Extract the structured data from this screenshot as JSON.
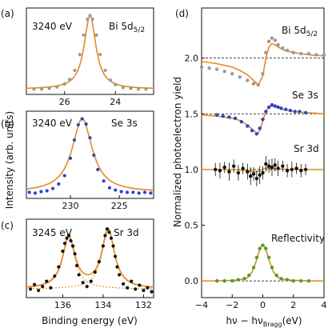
{
  "colors": {
    "fit": "#e58a1f",
    "axis": "#111111",
    "gray_points": "#9a9a9a",
    "blue_points": "#2b46c7",
    "black_points": "#111111",
    "green_points": "#4aa02c",
    "baseline": "#111111"
  },
  "labels": {
    "a": "(a)",
    "b": "(b)",
    "c": "(c)",
    "d": "(d)",
    "left_ylabel": "Intensity (arb. units)",
    "left_xlabel": "Binding energy (eV)",
    "right_ylabel": "Normalized photoelectron yield",
    "right_xlabel": "hν − hν",
    "right_xlabel_sub": "Bragg",
    "right_xlabel_unit": "(eV)"
  },
  "chart_data": [
    {
      "panel": "a",
      "type": "scatter",
      "energy_label": "3240 eV",
      "core_label": "Bi 5d",
      "core_sub": "5/2",
      "xlim": [
        27.5,
        22.5
      ],
      "xticks": [
        "26",
        "24"
      ],
      "xtick_values": [
        26,
        24
      ],
      "x": [
        27.2,
        26.9,
        26.6,
        26.3,
        26.0,
        25.8,
        25.6,
        25.4,
        25.25,
        25.1,
        25.0,
        24.9,
        24.75,
        24.6,
        24.4,
        24.2,
        24.0,
        23.7,
        23.4,
        23.1,
        22.8
      ],
      "y": [
        0.02,
        0.02,
        0.03,
        0.05,
        0.09,
        0.15,
        0.27,
        0.48,
        0.74,
        0.95,
        1.0,
        0.95,
        0.74,
        0.48,
        0.27,
        0.14,
        0.08,
        0.04,
        0.03,
        0.02,
        0.02
      ],
      "fit": {
        "center": 25.0,
        "width": 0.28,
        "baseline": 0.02,
        "amplitude": 0.98
      },
      "ylim": [
        -0.05,
        1.1
      ]
    },
    {
      "panel": "b",
      "type": "scatter",
      "energy_label": "3240 eV",
      "core_label": "Se 3s",
      "core_sub": "",
      "xlim": [
        234.5,
        221.5
      ],
      "xticks": [
        "230",
        "225"
      ],
      "xtick_values": [
        230,
        225
      ],
      "x": [
        234.2,
        233.6,
        233.0,
        232.4,
        231.8,
        231.2,
        230.6,
        230.0,
        229.6,
        229.2,
        228.8,
        228.4,
        228.0,
        227.6,
        227.2,
        226.6,
        226.0,
        225.4,
        224.8,
        224.2,
        223.6,
        223.0,
        222.4,
        221.8
      ],
      "y": [
        0.03,
        0.02,
        0.04,
        0.05,
        0.08,
        0.14,
        0.25,
        0.48,
        0.72,
        0.92,
        1.0,
        0.93,
        0.75,
        0.52,
        0.33,
        0.18,
        0.09,
        0.06,
        0.04,
        0.03,
        0.03,
        0.02,
        0.03,
        0.02
      ],
      "fit": {
        "center": 228.8,
        "width": 1.25,
        "baseline": 0.03,
        "amplitude": 0.97
      },
      "ylim": [
        -0.05,
        1.1
      ]
    },
    {
      "panel": "c",
      "type": "scatter",
      "energy_label": "3245 eV",
      "core_label": "Sr 3d",
      "core_sub": "",
      "xlim": [
        137.8,
        131.5
      ],
      "xticks": [
        "136",
        "134",
        "132"
      ],
      "xtick_values": [
        136,
        134,
        132
      ],
      "x": [
        137.6,
        137.4,
        137.2,
        137.0,
        136.8,
        136.6,
        136.4,
        136.2,
        136.0,
        135.9,
        135.8,
        135.7,
        135.6,
        135.5,
        135.4,
        135.3,
        135.2,
        135.0,
        134.8,
        134.6,
        134.4,
        134.2,
        134.0,
        133.9,
        133.8,
        133.7,
        133.6,
        133.5,
        133.4,
        133.3,
        133.2,
        133.0,
        132.8,
        132.6,
        132.4,
        132.2,
        132.0,
        131.8,
        131.6
      ],
      "y": [
        0.08,
        0.15,
        0.06,
        0.12,
        0.2,
        0.1,
        0.28,
        0.42,
        0.66,
        0.78,
        0.86,
        0.9,
        0.82,
        0.74,
        0.62,
        0.44,
        0.3,
        0.18,
        0.12,
        0.2,
        0.34,
        0.5,
        0.74,
        0.9,
        1.0,
        0.95,
        0.86,
        0.74,
        0.58,
        0.42,
        0.3,
        0.16,
        0.1,
        0.2,
        0.08,
        0.14,
        0.06,
        0.1,
        0.04
      ],
      "fit": {
        "peaks": [
          {
            "center": 135.7,
            "width": 0.38,
            "amplitude": 0.78
          },
          {
            "center": 133.75,
            "width": 0.38,
            "amplitude": 0.9
          }
        ],
        "baseline": 0.08
      },
      "ylim": [
        -0.05,
        1.15
      ]
    },
    {
      "panel": "d",
      "type": "line",
      "xlim": [
        -4,
        4
      ],
      "xticks": [
        "−4",
        "−2",
        "0",
        "2",
        "4"
      ],
      "xtick_values": [
        -4,
        -2,
        0,
        2,
        4
      ],
      "ylim": [
        -0.15,
        2.45
      ],
      "yticks": [
        "0.0",
        "0.5",
        "1.0",
        "1.5",
        "2.0"
      ],
      "ytick_values": [
        0,
        0.5,
        1.0,
        1.5,
        2.0
      ],
      "baselines": [
        0,
        1.0,
        1.5,
        2.0
      ],
      "series": [
        {
          "name": "Bi 5d",
          "name_sub": "5/2",
          "color_key": "gray_points",
          "x": [
            -4.0,
            -3.5,
            -3.0,
            -2.5,
            -2.0,
            -1.5,
            -1.0,
            -0.6,
            -0.3,
            0.0,
            0.2,
            0.4,
            0.6,
            0.8,
            1.0,
            1.3,
            1.6,
            2.0,
            2.5,
            3.0,
            3.5,
            4.0
          ],
          "y": [
            1.92,
            1.91,
            1.9,
            1.88,
            1.86,
            1.83,
            1.8,
            1.77,
            1.76,
            1.86,
            2.05,
            2.15,
            2.18,
            2.16,
            2.12,
            2.09,
            2.07,
            2.05,
            2.04,
            2.04,
            2.03,
            2.03
          ],
          "fit_x": [
            -4.0,
            -3.0,
            -2.0,
            -1.5,
            -1.0,
            -0.6,
            -0.3,
            0.0,
            0.2,
            0.4,
            0.6,
            0.8,
            1.0,
            1.4,
            2.0,
            3.0,
            4.0
          ],
          "fit_y": [
            1.97,
            1.95,
            1.92,
            1.89,
            1.85,
            1.8,
            1.76,
            1.84,
            2.0,
            2.1,
            2.13,
            2.12,
            2.1,
            2.07,
            2.05,
            2.03,
            2.02
          ]
        },
        {
          "name": "Se 3s",
          "name_sub": "",
          "color_key": "blue_points",
          "x": [
            -3.0,
            -2.6,
            -2.2,
            -1.8,
            -1.4,
            -1.0,
            -0.7,
            -0.4,
            -0.2,
            0.0,
            0.2,
            0.4,
            0.6,
            0.8,
            1.0,
            1.2,
            1.5,
            1.8,
            2.1,
            2.4,
            2.8
          ],
          "y": [
            1.49,
            1.48,
            1.47,
            1.46,
            1.43,
            1.39,
            1.35,
            1.32,
            1.37,
            1.45,
            1.52,
            1.56,
            1.58,
            1.57,
            1.56,
            1.55,
            1.54,
            1.53,
            1.52,
            1.52,
            1.51
          ],
          "fit_x": [
            -4.0,
            -3.0,
            -2.0,
            -1.5,
            -1.0,
            -0.6,
            -0.35,
            -0.15,
            0.0,
            0.2,
            0.4,
            0.6,
            0.9,
            1.3,
            2.0,
            3.0,
            4.0
          ],
          "fit_y": [
            1.49,
            1.48,
            1.46,
            1.44,
            1.4,
            1.35,
            1.32,
            1.36,
            1.44,
            1.52,
            1.56,
            1.57,
            1.56,
            1.54,
            1.52,
            1.51,
            1.5
          ]
        },
        {
          "name": "Sr 3d",
          "name_sub": "",
          "color_key": "black_points",
          "x": [
            -3.1,
            -2.8,
            -2.5,
            -2.2,
            -1.9,
            -1.6,
            -1.3,
            -1.0,
            -0.8,
            -0.6,
            -0.4,
            -0.2,
            0.0,
            0.2,
            0.4,
            0.6,
            0.8,
            1.0,
            1.3,
            1.6,
            1.9,
            2.2,
            2.5,
            2.8
          ],
          "y": [
            1.0,
            0.99,
            1.02,
            0.98,
            1.03,
            0.97,
            1.01,
            0.98,
            0.94,
            0.96,
            0.92,
            0.95,
            0.97,
            1.05,
            1.03,
            1.02,
            1.04,
            1.01,
            1.03,
            0.99,
            1.0,
            1.01,
            0.99,
            1.0
          ],
          "err": [
            0.06,
            0.07,
            0.05,
            0.08,
            0.06,
            0.07,
            0.05,
            0.07,
            0.08,
            0.06,
            0.07,
            0.08,
            0.06,
            0.07,
            0.06,
            0.08,
            0.06,
            0.07,
            0.05,
            0.06,
            0.07,
            0.05,
            0.06,
            0.05
          ],
          "fit_x": [
            -4.0,
            -2.0,
            -1.0,
            -0.5,
            -0.2,
            0.0,
            0.2,
            0.5,
            1.0,
            2.0,
            4.0
          ],
          "fit_y": [
            1.0,
            1.0,
            0.99,
            0.98,
            0.985,
            1.0,
            1.015,
            1.01,
            1.005,
            1.0,
            1.0
          ]
        },
        {
          "name": "Reflectivity",
          "name_sub": "",
          "color_key": "green_points",
          "x": [
            -3.0,
            -2.5,
            -2.0,
            -1.6,
            -1.2,
            -0.9,
            -0.6,
            -0.4,
            -0.2,
            0.0,
            0.2,
            0.4,
            0.6,
            0.9,
            1.2,
            1.6,
            2.0,
            2.5,
            3.0
          ],
          "y": [
            0.0,
            0.0,
            0.0,
            0.01,
            0.02,
            0.05,
            0.12,
            0.21,
            0.29,
            0.32,
            0.29,
            0.21,
            0.12,
            0.05,
            0.02,
            0.01,
            0.0,
            0.0,
            0.0
          ],
          "fit_x": [
            -4.0,
            -3.0,
            -2.0,
            -1.5,
            -1.0,
            -0.7,
            -0.45,
            -0.25,
            -0.1,
            0.0,
            0.1,
            0.25,
            0.45,
            0.7,
            1.0,
            1.5,
            2.0,
            3.0,
            4.0
          ],
          "fit_y": [
            0.0,
            0.0,
            0.005,
            0.01,
            0.03,
            0.08,
            0.17,
            0.26,
            0.31,
            0.32,
            0.31,
            0.26,
            0.17,
            0.08,
            0.03,
            0.01,
            0.005,
            0.0,
            0.0
          ]
        }
      ]
    }
  ]
}
